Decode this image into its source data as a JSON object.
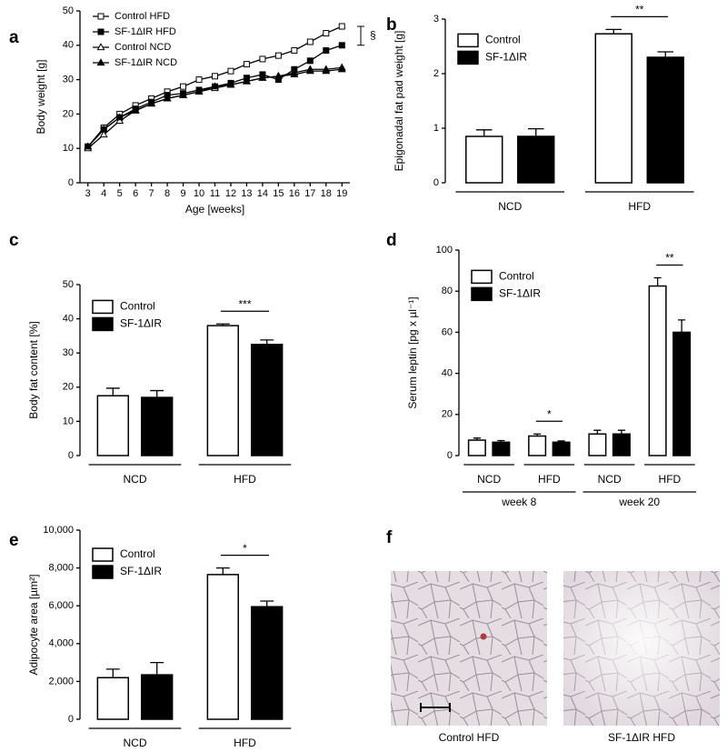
{
  "chart_data": [
    {
      "type": "line",
      "panel": "a",
      "xlabel": "Age [weeks]",
      "ylabel": "Body weight [g]",
      "x": [
        3,
        4,
        5,
        6,
        7,
        8,
        9,
        10,
        11,
        12,
        13,
        14,
        15,
        16,
        17,
        18,
        19
      ],
      "xlim": [
        2.5,
        19.5
      ],
      "xticks": [
        3,
        4,
        5,
        6,
        7,
        8,
        9,
        10,
        11,
        12,
        13,
        14,
        15,
        16,
        17,
        18,
        19
      ],
      "ylim": [
        0,
        50
      ],
      "yticks": [
        0,
        10,
        20,
        30,
        40,
        50
      ],
      "legend": "upper left",
      "annotation": "§",
      "series": [
        {
          "name": "Control HFD",
          "color": "#000000",
          "marker": "square-open",
          "values": [
            10.5,
            16,
            20,
            22.5,
            24.5,
            26.5,
            28,
            30,
            31,
            32.5,
            34.5,
            36,
            37,
            38.5,
            41,
            43.5,
            45.5
          ]
        },
        {
          "name": "SF-1ΔIR HFD",
          "color": "#000000",
          "marker": "square-filled",
          "values": [
            10.5,
            15.5,
            19,
            21.5,
            23.5,
            25.5,
            26,
            27,
            28,
            29,
            30.5,
            31.5,
            30,
            33,
            35.5,
            38.5,
            40
          ]
        },
        {
          "name": "Control NCD",
          "color": "#000000",
          "marker": "triangle-open",
          "values": [
            10,
            14,
            18,
            21,
            23,
            24.5,
            25.5,
            26.5,
            27.5,
            28.5,
            29.5,
            30.5,
            31,
            32,
            33,
            33,
            33.5
          ]
        },
        {
          "name": "SF-1ΔIR NCD",
          "color": "#000000",
          "marker": "triangle-filled",
          "values": [
            10.5,
            15.5,
            19,
            21,
            23,
            24.5,
            25.5,
            26.5,
            28,
            28.5,
            29.5,
            30.5,
            31,
            31.5,
            32.5,
            32.5,
            33
          ]
        }
      ]
    },
    {
      "type": "bar",
      "panel": "b",
      "ylabel": "Epigonadal fat pad weight [g]",
      "categories": [
        "NCD",
        "HFD"
      ],
      "ylim": [
        0,
        3
      ],
      "yticks": [
        0,
        1,
        2,
        3
      ],
      "legend": "upper left",
      "significance": [
        null,
        "**"
      ],
      "series": [
        {
          "name": "Control",
          "color": "#ffffff",
          "values": [
            0.85,
            2.73
          ],
          "errors": [
            0.12,
            0.08
          ]
        },
        {
          "name": "SF-1ΔIR",
          "color": "#000000",
          "values": [
            0.85,
            2.3
          ],
          "errors": [
            0.14,
            0.1
          ]
        }
      ]
    },
    {
      "type": "bar",
      "panel": "c",
      "ylabel": "Body fat content [%]",
      "categories": [
        "NCD",
        "HFD"
      ],
      "ylim": [
        0,
        50
      ],
      "yticks": [
        0,
        10,
        20,
        30,
        40,
        50
      ],
      "legend": "upper left",
      "significance": [
        null,
        "***"
      ],
      "series": [
        {
          "name": "Control",
          "color": "#ffffff",
          "values": [
            17.5,
            38
          ],
          "errors": [
            2.2,
            0.5
          ]
        },
        {
          "name": "SF-1ΔIR",
          "color": "#000000",
          "values": [
            17,
            32.5
          ],
          "errors": [
            2,
            1.3
          ]
        }
      ]
    },
    {
      "type": "bar",
      "panel": "d",
      "ylabel": "Serum leptin [pg x µl⁻¹]",
      "categories": [
        "NCD",
        "HFD",
        "NCD",
        "HFD"
      ],
      "groups": [
        "week 8",
        "week 20"
      ],
      "ylim": [
        0,
        100
      ],
      "yticks": [
        0,
        20,
        40,
        60,
        80,
        100
      ],
      "legend": "upper left",
      "significance": [
        null,
        "*",
        null,
        "**"
      ],
      "series": [
        {
          "name": "Control",
          "color": "#ffffff",
          "values": [
            7.5,
            9.5,
            10.5,
            82.5
          ],
          "errors": [
            1,
            1,
            1.8,
            4
          ]
        },
        {
          "name": "SF-1ΔIR",
          "color": "#000000",
          "values": [
            6.5,
            6.5,
            10.5,
            60
          ],
          "errors": [
            0.8,
            0.6,
            1.8,
            6
          ]
        }
      ]
    },
    {
      "type": "bar",
      "panel": "e",
      "ylabel": "Adipocyte area [µm²]",
      "categories": [
        "NCD",
        "HFD"
      ],
      "ylim": [
        0,
        10000
      ],
      "yticks": [
        0,
        {
          "value": 2000,
          "label": "2,000"
        },
        {
          "value": 4000,
          "label": "4,000"
        },
        {
          "value": 6000,
          "label": "6,000"
        },
        {
          "value": 8000,
          "label": "8,000"
        },
        {
          "value": 10000,
          "label": "10,000"
        }
      ],
      "legend": "upper left",
      "significance": [
        null,
        "*"
      ],
      "series": [
        {
          "name": "Control",
          "color": "#ffffff",
          "values": [
            2200,
            7650
          ],
          "errors": [
            450,
            350
          ]
        },
        {
          "name": "SF-1ΔIR",
          "color": "#000000",
          "values": [
            2350,
            5950
          ],
          "errors": [
            650,
            300
          ]
        }
      ]
    }
  ],
  "figure": {
    "panel": "f",
    "captions": [
      "Control HFD",
      "SF-1ΔIR HFD"
    ]
  }
}
